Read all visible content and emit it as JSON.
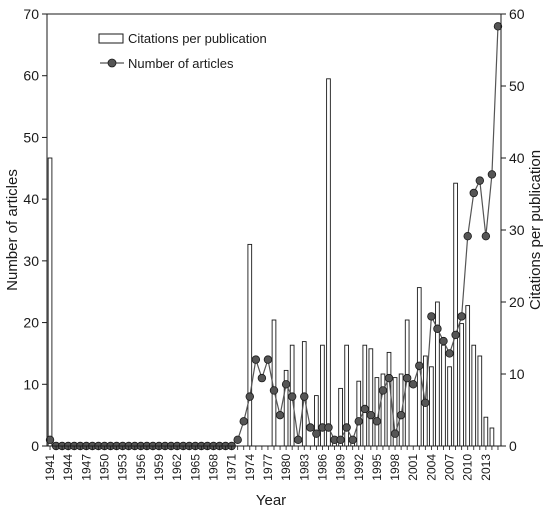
{
  "chart_data": {
    "type": "bar+line",
    "xlabel": "Year",
    "ylabel_left": "Number of articles",
    "ylabel_right": "Citations per publication",
    "ylim_left": [
      0,
      70
    ],
    "ylim_right": [
      0,
      60
    ],
    "yticks_left": [
      "0",
      "10",
      "20",
      "30",
      "40",
      "50",
      "60",
      "70"
    ],
    "yticks_right": [
      "0",
      "10",
      "20",
      "30",
      "40",
      "50",
      "60"
    ],
    "xtick_labels": [
      "1941",
      "1944",
      "1947",
      "1950",
      "1953",
      "1956",
      "1959",
      "1962",
      "1965",
      "1968",
      "1971",
      "1974",
      "1977",
      "1980",
      "1983",
      "1986",
      "1989",
      "1992",
      "1995",
      "1998",
      "2001",
      "2004",
      "2007",
      "2010",
      "2013"
    ],
    "years": [
      1941,
      1942,
      1943,
      1944,
      1945,
      1946,
      1947,
      1948,
      1949,
      1950,
      1951,
      1952,
      1953,
      1954,
      1955,
      1956,
      1957,
      1958,
      1959,
      1960,
      1961,
      1962,
      1963,
      1964,
      1965,
      1966,
      1967,
      1968,
      1969,
      1970,
      1971,
      1972,
      1973,
      1974,
      1975,
      1976,
      1977,
      1978,
      1979,
      1980,
      1981,
      1982,
      1983,
      1984,
      1985,
      1986,
      1987,
      1988,
      1989,
      1990,
      1991,
      1992,
      1993,
      1994,
      1995,
      1996,
      1997,
      1998,
      1999,
      2000,
      2001,
      2002,
      2003,
      2004,
      2005,
      2006,
      2007,
      2008,
      2009,
      2010,
      2011,
      2012,
      2013,
      2014,
      2015
    ],
    "grid": false,
    "legend_position": "top-left",
    "series": [
      {
        "name": "Citations per publication",
        "type": "bar",
        "axis": "right",
        "values": [
          40,
          0,
          0,
          0,
          0,
          0,
          0,
          0,
          0,
          0,
          0,
          0,
          0,
          0,
          0,
          0,
          0,
          0,
          0,
          0,
          0,
          0,
          0,
          0,
          0,
          0,
          0,
          0,
          0,
          0,
          0,
          0,
          0,
          28,
          0,
          0,
          0,
          17.5,
          0,
          10.5,
          14,
          0,
          14.5,
          0,
          7,
          14,
          51,
          1,
          8,
          14,
          1,
          9,
          14,
          13.5,
          9.5,
          10,
          13,
          9.5,
          10,
          17.5,
          0,
          22,
          12.5,
          11,
          20,
          14,
          11,
          36.5,
          17,
          19.5,
          14,
          12.5,
          4,
          2.5,
          0
        ]
      },
      {
        "name": "Number of articles",
        "type": "line",
        "axis": "left",
        "values": [
          1,
          0,
          0,
          0,
          0,
          0,
          0,
          0,
          0,
          0,
          0,
          0,
          0,
          0,
          0,
          0,
          0,
          0,
          0,
          0,
          0,
          0,
          0,
          0,
          0,
          0,
          0,
          0,
          0,
          0,
          0,
          1,
          4,
          8,
          14,
          11,
          14,
          9,
          5,
          10,
          8,
          1,
          8,
          3,
          2,
          3,
          3,
          1,
          1,
          3,
          1,
          4,
          6,
          5,
          4,
          9,
          11,
          2,
          5,
          11,
          10,
          13,
          7,
          21,
          19,
          17,
          15,
          18,
          21,
          34,
          41,
          43,
          34,
          44,
          68
        ]
      }
    ]
  }
}
